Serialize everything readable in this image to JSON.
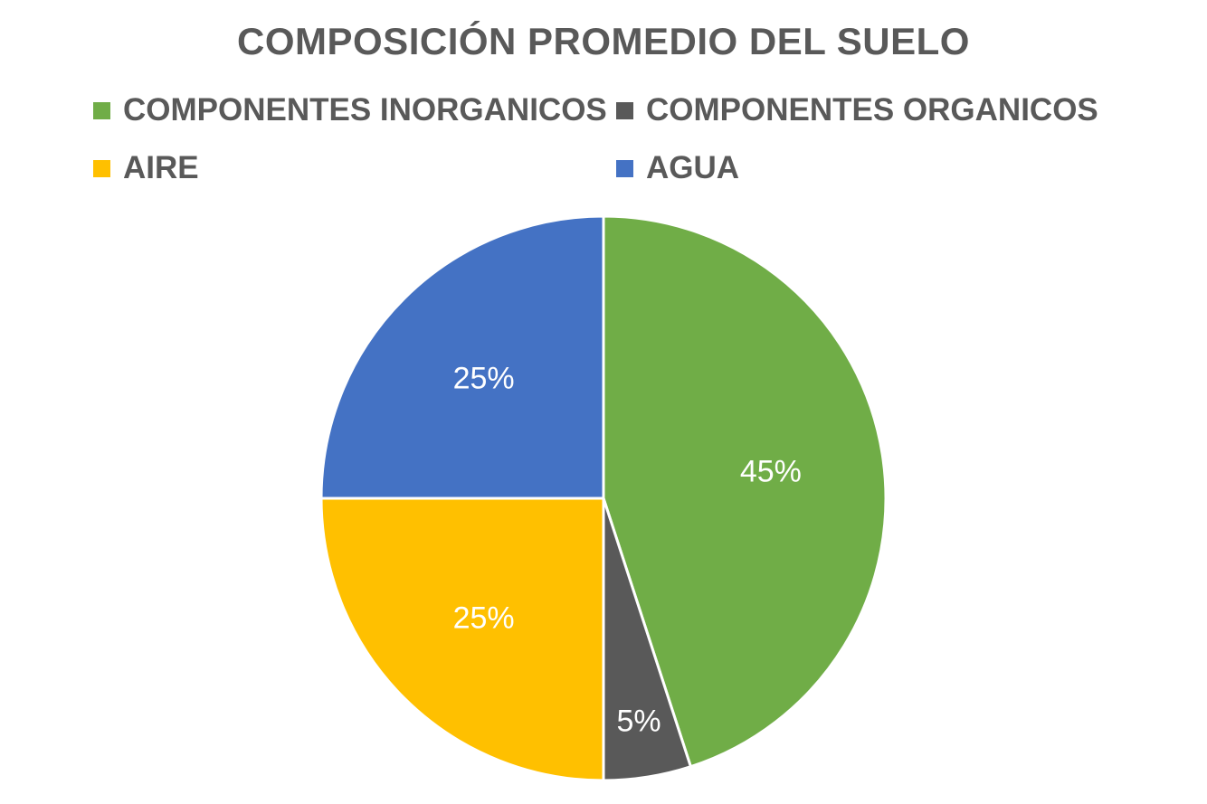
{
  "chart_data": {
    "type": "pie",
    "title": "COMPOSICIÓN PROMEDIO DEL SUELO",
    "categories": [
      "COMPONENTES INORGANICOS",
      "COMPONENTES ORGANICOS",
      "AIRE",
      "AGUA"
    ],
    "values": [
      45,
      5,
      25,
      25
    ],
    "data_labels": [
      "45%",
      "5%",
      "25%",
      "25%"
    ],
    "colors": [
      "#70AD47",
      "#595959",
      "#FFC000",
      "#4472C4"
    ],
    "legend_position": "top",
    "start_angle": "12 o'clock",
    "direction": "clockwise"
  }
}
